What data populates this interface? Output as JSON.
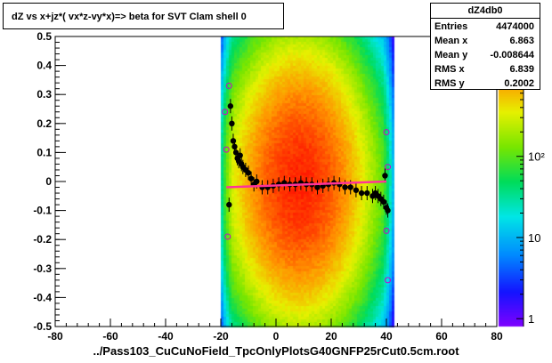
{
  "title": "dZ vs  x+jz*( vx*z-vy*x)=> beta  for SVT Clam shell 0",
  "stats": {
    "name": "dZ4db0",
    "rows": [
      {
        "label": "Entries",
        "value": "4474000"
      },
      {
        "label": "Mean x",
        "value": "6.863"
      },
      {
        "label": "Mean y",
        "value": "-0.008644"
      },
      {
        "label": "RMS x",
        "value": "6.839"
      },
      {
        "label": "RMS y",
        "value": "0.2002"
      }
    ]
  },
  "chart_data": {
    "type": "heatmap",
    "title": "dZ vs  x+jz*( vx*z-vy*x)=> beta  for SVT Clam shell 0",
    "xlabel": "../Pass103_CuCuNoField_TpcOnlyPlotsG40GNFP25rCut0.5cm.root",
    "ylabel": "",
    "xlim": [
      -80,
      80
    ],
    "ylim": [
      -0.5,
      0.5
    ],
    "x_ticks": [
      -80,
      -60,
      -40,
      -20,
      0,
      20,
      40,
      60,
      80
    ],
    "y_ticks": [
      -0.5,
      -0.4,
      -0.3,
      -0.2,
      -0.1,
      0,
      0.1,
      0.2,
      0.3,
      0.4,
      0.5
    ],
    "z_log": true,
    "z_ticks": [
      {
        "value": 1,
        "label": "1"
      },
      {
        "value": 10,
        "label": "10"
      },
      {
        "value": 100,
        "label": "10²"
      }
    ],
    "zlim": [
      0.8,
      3000
    ],
    "density_center": {
      "x": 8,
      "y": 0.0
    },
    "density_width": {
      "x": 9,
      "y": 0.22
    },
    "x_extent": [
      -20,
      42
    ],
    "profile_points": [
      {
        "x": -17,
        "y": -0.08
      },
      {
        "x": -16.5,
        "y": 0.26
      },
      {
        "x": -16,
        "y": 0.2
      },
      {
        "x": -15.5,
        "y": 0.14
      },
      {
        "x": -15,
        "y": 0.12
      },
      {
        "x": -14.5,
        "y": 0.1
      },
      {
        "x": -14,
        "y": 0.08
      },
      {
        "x": -13.5,
        "y": 0.07
      },
      {
        "x": -13,
        "y": 0.09
      },
      {
        "x": -12.5,
        "y": 0.06
      },
      {
        "x": -12,
        "y": 0.05
      },
      {
        "x": -11,
        "y": 0.04
      },
      {
        "x": -10,
        "y": 0.03
      },
      {
        "x": -9,
        "y": 0.01
      },
      {
        "x": -8,
        "y": -0.01
      },
      {
        "x": -7,
        "y": 0.0
      },
      {
        "x": -5,
        "y": -0.02
      },
      {
        "x": -3,
        "y": -0.02
      },
      {
        "x": -1,
        "y": -0.015
      },
      {
        "x": 1,
        "y": -0.01
      },
      {
        "x": 3,
        "y": -0.005
      },
      {
        "x": 5,
        "y": -0.01
      },
      {
        "x": 7,
        "y": -0.01
      },
      {
        "x": 9,
        "y": -0.005
      },
      {
        "x": 11,
        "y": -0.01
      },
      {
        "x": 13,
        "y": -0.01
      },
      {
        "x": 15,
        "y": -0.02
      },
      {
        "x": 17,
        "y": -0.015
      },
      {
        "x": 19,
        "y": -0.01
      },
      {
        "x": 21,
        "y": -0.005
      },
      {
        "x": 23,
        "y": -0.01
      },
      {
        "x": 25,
        "y": -0.02
      },
      {
        "x": 27,
        "y": -0.02
      },
      {
        "x": 29,
        "y": -0.03
      },
      {
        "x": 31,
        "y": -0.04
      },
      {
        "x": 33,
        "y": -0.04
      },
      {
        "x": 35,
        "y": -0.05
      },
      {
        "x": 36,
        "y": -0.04
      },
      {
        "x": 37,
        "y": -0.05
      },
      {
        "x": 38,
        "y": -0.06
      },
      {
        "x": 39,
        "y": -0.07
      },
      {
        "x": 39.5,
        "y": 0.02
      },
      {
        "x": 40,
        "y": -0.09
      },
      {
        "x": 40.5,
        "y": -0.1
      }
    ],
    "fit_line": [
      {
        "x": -18,
        "y": -0.02
      },
      {
        "x": 40,
        "y": 0.0
      }
    ],
    "outlier_points": [
      {
        "x": -18.5,
        "y": 0.24
      },
      {
        "x": -18,
        "y": 0.11
      },
      {
        "x": -17.5,
        "y": -0.19
      },
      {
        "x": -17,
        "y": 0.33
      },
      {
        "x": 40,
        "y": 0.17
      },
      {
        "x": 40.5,
        "y": 0.05
      },
      {
        "x": 40,
        "y": -0.17
      },
      {
        "x": 40.5,
        "y": -0.34
      }
    ]
  }
}
